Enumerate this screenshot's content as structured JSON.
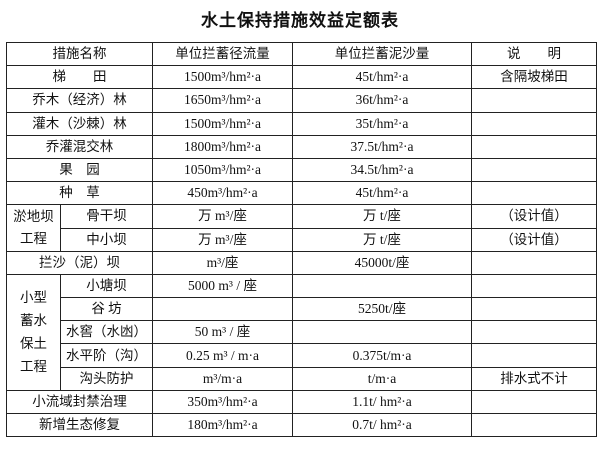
{
  "title": "水土保持措施效益定额表",
  "headers": [
    "措施名称",
    "单位拦蓄径流量",
    "单位拦蓄泥沙量",
    "说　　明"
  ],
  "rows_simple_top": [
    {
      "name": "梯　　田",
      "runoff": "1500m³/hm²·a",
      "sediment": "45t/hm²·a",
      "note": "含隔坡梯田"
    },
    {
      "name": "乔木（经济）林",
      "runoff": "1650m³/hm²·a",
      "sediment": "36t/hm²·a",
      "note": ""
    },
    {
      "name": "灌木（沙棘）林",
      "runoff": "1500m³/hm²·a",
      "sediment": "35t/hm²·a",
      "note": ""
    },
    {
      "name": "乔灌混交林",
      "runoff": "1800m³/hm²·a",
      "sediment": "37.5t/hm²·a",
      "note": ""
    },
    {
      "name": "果　园",
      "runoff": "1050m³/hm²·a",
      "sediment": "34.5t/hm²·a",
      "note": ""
    },
    {
      "name": "种　草",
      "runoff": "450m³/hm²·a",
      "sediment": "45t/hm²·a",
      "note": ""
    }
  ],
  "group_dam": {
    "label": "淤地坝工程",
    "rows": [
      {
        "name": "骨干坝",
        "runoff": "万 m³/座",
        "sediment": "万 t/座",
        "note": "（设计值）"
      },
      {
        "name": "中小坝",
        "runoff": "万 m³/座",
        "sediment": "万 t/座",
        "note": "（设计值）"
      }
    ]
  },
  "sand_dam": {
    "name": "拦沙（泥）坝",
    "runoff": "m³/座",
    "sediment": "45000t/座",
    "note": ""
  },
  "group_small": {
    "label": "小型蓄水保土工程",
    "rows": [
      {
        "name": "小塘坝",
        "runoff": "5000 m³ / 座",
        "sediment": "",
        "note": ""
      },
      {
        "name": "谷 坊",
        "runoff": "",
        "sediment": "5250t/座",
        "note": ""
      },
      {
        "name": "水窖（水凼）",
        "runoff": "50 m³ / 座",
        "sediment": "",
        "note": ""
      },
      {
        "name": "水平阶（沟）",
        "runoff": "0.25 m³ / m·a",
        "sediment": "0.375t/m·a",
        "note": ""
      },
      {
        "name": "沟头防护",
        "runoff": "m³/m·a",
        "sediment": "t/m·a",
        "note": "排水式不计"
      }
    ]
  },
  "rows_simple_bottom": [
    {
      "name": "小流域封禁治理",
      "runoff": "350m³/hm²·a",
      "sediment": "1.1t/ hm²·a",
      "note": ""
    },
    {
      "name": "新增生态修复",
      "runoff": "180m³/hm²·a",
      "sediment": "0.7t/ hm²·a",
      "note": ""
    }
  ]
}
